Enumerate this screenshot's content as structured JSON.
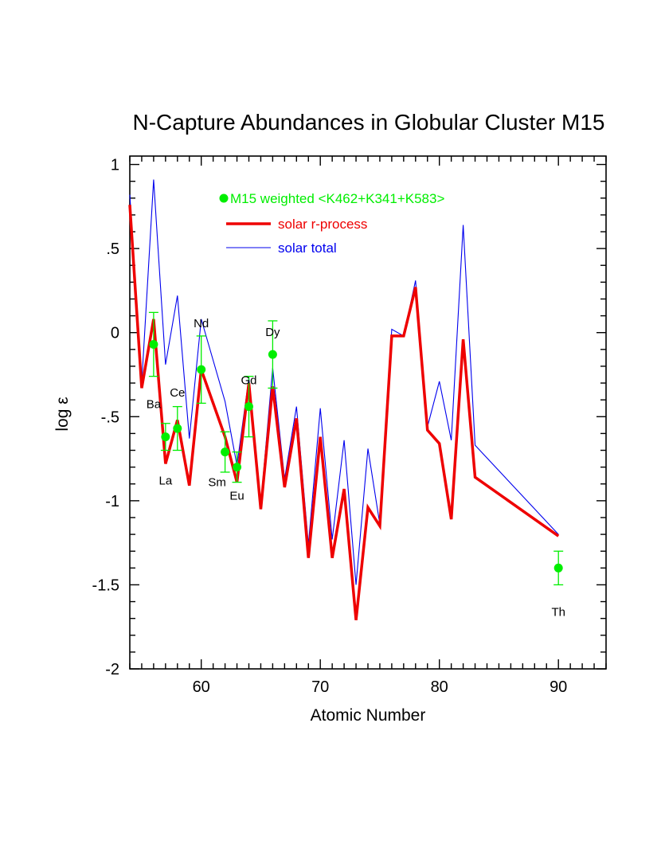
{
  "chart_data": {
    "type": "line",
    "title": "N-Capture Abundances in Globular Cluster M15",
    "xlabel": "Atomic Number",
    "ylabel": "log ε",
    "xlim": [
      54,
      94
    ],
    "ylim": [
      -2,
      1.05
    ],
    "x_ticks": [
      {
        "value": 60,
        "label": "60"
      },
      {
        "value": 70,
        "label": "70"
      },
      {
        "value": 80,
        "label": "80"
      },
      {
        "value": 90,
        "label": "90"
      }
    ],
    "y_ticks": [
      {
        "value": 1,
        "label": "1"
      },
      {
        "value": 0.5,
        "label": ".5"
      },
      {
        "value": 0,
        "label": "0"
      },
      {
        "value": -0.5,
        "label": "-.5"
      },
      {
        "value": -1,
        "label": "-1"
      },
      {
        "value": -1.5,
        "label": "-1.5"
      },
      {
        "value": -2,
        "label": "-2"
      }
    ],
    "legend": {
      "position": "top-center",
      "entries": [
        {
          "name": "M15 weighted <K462+K341+K583>",
          "color": "#00ee00",
          "style": "marker"
        },
        {
          "name": "solar r-process",
          "color": "#ee0000",
          "style": "thick-line"
        },
        {
          "name": "solar total",
          "color": "#0000ee",
          "style": "thin-line"
        }
      ]
    },
    "series": [
      {
        "name": "solar total",
        "color": "#0000ee",
        "x": [
          54,
          55,
          56,
          57,
          58,
          59,
          60,
          62,
          63,
          64,
          65,
          66,
          67,
          68,
          69,
          70,
          71,
          72,
          73,
          74,
          75,
          76,
          77,
          78,
          79,
          80,
          81,
          82,
          83,
          90
        ],
        "y": [
          0.82,
          -0.3,
          0.91,
          -0.19,
          0.22,
          -0.63,
          0.08,
          -0.41,
          -0.79,
          -0.27,
          -1.02,
          -0.21,
          -0.87,
          -0.44,
          -1.26,
          -0.45,
          -1.23,
          -0.64,
          -1.5,
          -0.69,
          -1.14,
          0.02,
          -0.02,
          0.31,
          -0.56,
          -0.29,
          -0.64,
          0.64,
          -0.67,
          -1.2
        ]
      },
      {
        "name": "solar r-process",
        "color": "#ee0000",
        "x": [
          54,
          55,
          56,
          57,
          58,
          59,
          60,
          62,
          63,
          64,
          65,
          66,
          67,
          68,
          69,
          70,
          71,
          72,
          73,
          74,
          75,
          76,
          77,
          78,
          79,
          80,
          81,
          82,
          83,
          90
        ],
        "y": [
          0.76,
          -0.33,
          0.08,
          -0.78,
          -0.52,
          -0.91,
          -0.22,
          -0.62,
          -0.89,
          -0.3,
          -1.05,
          -0.32,
          -0.92,
          -0.51,
          -1.34,
          -0.62,
          -1.34,
          -0.93,
          -1.71,
          -1.04,
          -1.15,
          -0.02,
          -0.02,
          0.27,
          -0.58,
          -0.66,
          -1.11,
          -0.04,
          -0.86,
          -1.21
        ]
      },
      {
        "name": "M15 weighted <K462+K341+K583>",
        "color": "#00ee00",
        "type": "scatter",
        "points": [
          {
            "x": 56,
            "y": -0.07,
            "err": 0.19,
            "label": "Ba"
          },
          {
            "x": 57,
            "y": -0.62,
            "err": 0.08,
            "label": "La"
          },
          {
            "x": 58,
            "y": -0.57,
            "err": 0.13,
            "label": "Ce"
          },
          {
            "x": 60,
            "y": -0.22,
            "err": 0.2,
            "label": "Nd"
          },
          {
            "x": 62,
            "y": -0.71,
            "err": 0.12,
            "label": "Sm"
          },
          {
            "x": 63,
            "y": -0.8,
            "err": 0.09,
            "label": "Eu"
          },
          {
            "x": 64,
            "y": -0.44,
            "err": 0.18,
            "label": "Gd"
          },
          {
            "x": 66,
            "y": -0.13,
            "err": 0.2,
            "label": "Dy"
          },
          {
            "x": 90,
            "y": -1.4,
            "err": 0.1,
            "label": "Th"
          }
        ]
      }
    ]
  }
}
